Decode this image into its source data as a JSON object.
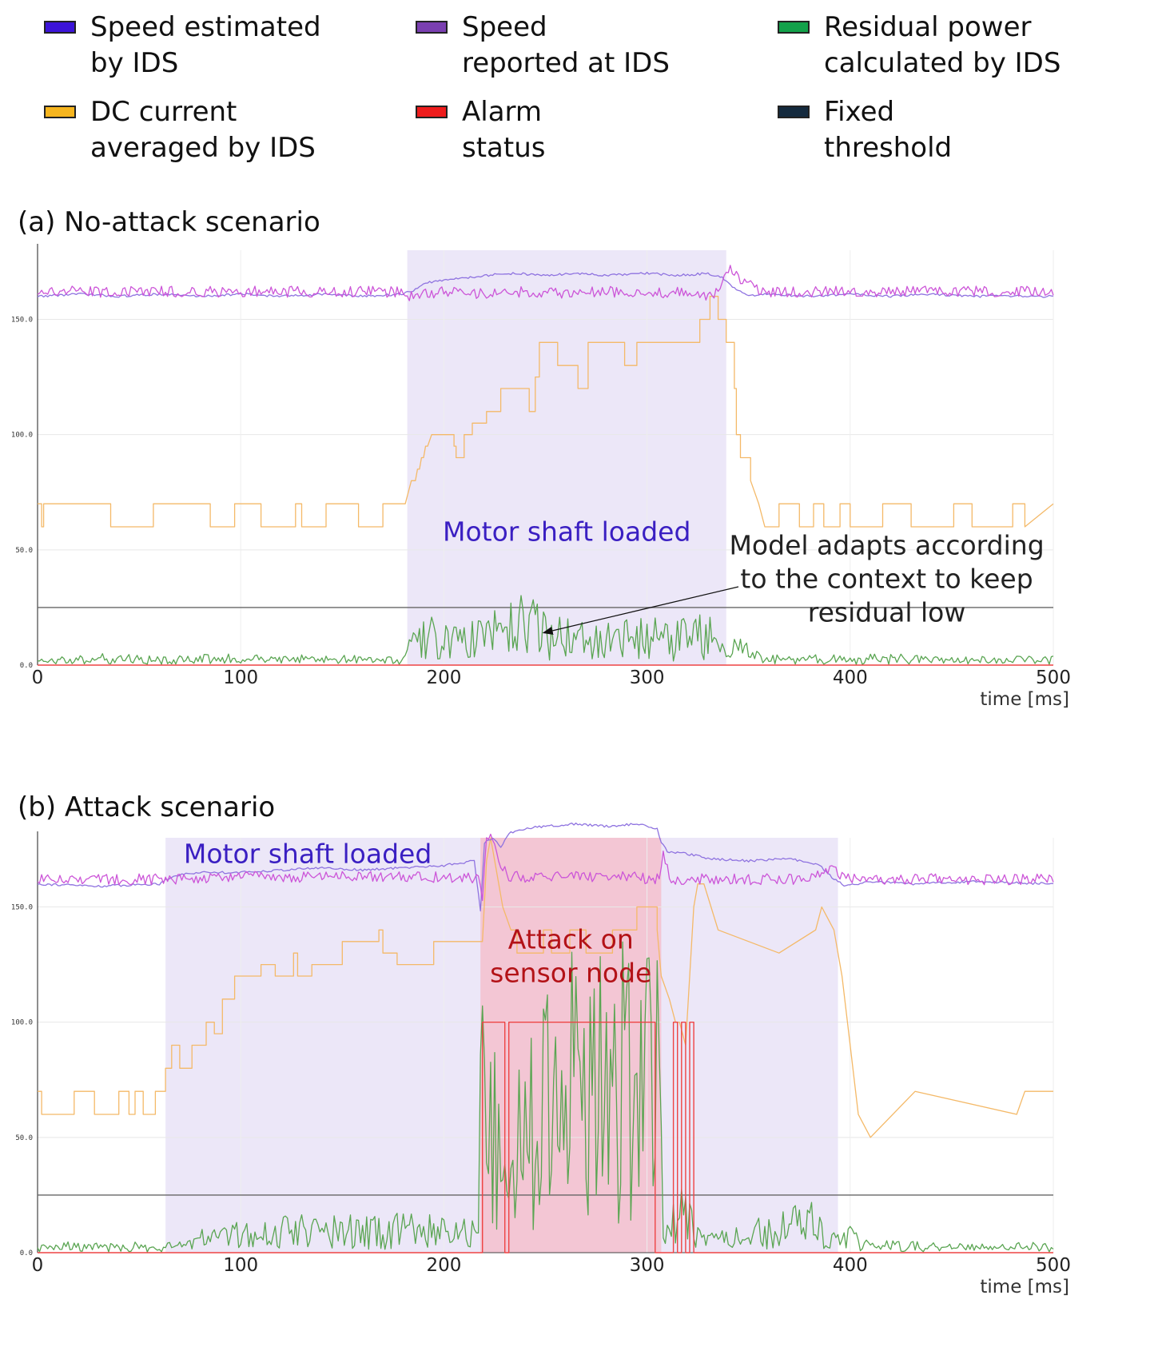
{
  "legend": [
    {
      "label": "Speed estimated\nby IDS",
      "color": "#3c14d8"
    },
    {
      "label": "Speed\nreported at IDS",
      "color": "#7a3fb0"
    },
    {
      "label": "Residual power\ncalculated by IDS",
      "color": "#12a14a"
    },
    {
      "label": "DC current\naveraged by IDS",
      "color": "#f6b51e"
    },
    {
      "label": "Alarm\nstatus",
      "color": "#ee1c1c"
    },
    {
      "label": "Fixed\nthreshold",
      "color": "#142a3e"
    }
  ],
  "colors": {
    "speed_estimated_line": "#8f73e0",
    "speed_reported_line": "#cc55d8",
    "residual_line": "#5aa552",
    "dc_current_line": "#f4b968",
    "alarm_line": "#ee4444",
    "threshold_line": "#666666",
    "loaded_band": "#ece7f8",
    "attack_band": "#f3c6d4"
  },
  "chart_data": [
    {
      "type": "line",
      "title": "(a) No-attack scenario",
      "xlabel": "time [ms]",
      "xlim": [
        0,
        500
      ],
      "ylim": [
        0,
        180
      ],
      "x_ticks": [
        "0",
        "100",
        "200",
        "300",
        "400",
        "500"
      ],
      "y_ticks": [
        "0.0",
        "50.0",
        "100.0",
        "150.0"
      ],
      "y_tick_values": [
        0,
        50,
        100,
        150
      ],
      "threshold": 25,
      "bands": [
        {
          "kind": "loaded",
          "x0": 182,
          "x1": 339,
          "label": "Motor shaft loaded"
        }
      ],
      "annotation": {
        "text": "Model adapts according\nto the context to keep\nresidual low",
        "arrow_to": [
          249,
          14
        ]
      },
      "series": [
        {
          "name": "Speed estimated by IDS",
          "key": "speed_est",
          "x": [
            0,
            20,
            40,
            60,
            80,
            100,
            120,
            140,
            160,
            180,
            186,
            192,
            200,
            210,
            220,
            235,
            250,
            265,
            280,
            300,
            315,
            330,
            337,
            342,
            350,
            360,
            380,
            400,
            420,
            440,
            460,
            480,
            500
          ],
          "y": [
            160,
            161,
            160,
            161,
            160,
            161,
            160,
            161,
            160,
            161,
            163,
            166,
            167,
            168,
            169,
            170,
            169,
            170,
            169,
            170,
            169,
            170,
            168,
            164,
            160,
            161,
            160,
            161,
            160,
            161,
            160,
            160,
            160
          ]
        },
        {
          "name": "Speed reported at IDS",
          "key": "speed_rep",
          "x": [
            0,
            180,
            182,
            200,
            220,
            240,
            260,
            280,
            300,
            320,
            333,
            340,
            345,
            352,
            360,
            380,
            400,
            420,
            440,
            460,
            480,
            500
          ],
          "y": [
            162,
            162,
            160,
            162,
            161,
            162,
            161,
            162,
            161,
            162,
            160,
            172,
            168,
            164,
            162,
            162,
            162,
            162,
            162,
            162,
            162,
            162
          ]
        },
        {
          "name": "DC current averaged by IDS",
          "key": "dc",
          "x": [
            0,
            2,
            2,
            3,
            3,
            36,
            36,
            57,
            57,
            85,
            85,
            97,
            97,
            110,
            110,
            127,
            127,
            130,
            130,
            142,
            142,
            158,
            158,
            170,
            170,
            181,
            184,
            186,
            187,
            188,
            189,
            190,
            191,
            192,
            194,
            195,
            205,
            205,
            206,
            206,
            210,
            210,
            214,
            214,
            221,
            221,
            228,
            228,
            230,
            230,
            242,
            242,
            245,
            245,
            247,
            247,
            256,
            256,
            263,
            263,
            266,
            266,
            271,
            271,
            289,
            289,
            295,
            295,
            311,
            311,
            326,
            326,
            331,
            331,
            335,
            335,
            339,
            339,
            343,
            343,
            344,
            344,
            346,
            346,
            351,
            351,
            355,
            358,
            365,
            365,
            375,
            375,
            382,
            382,
            387,
            387,
            395,
            395,
            400,
            400,
            416,
            416,
            430,
            430,
            451,
            451,
            460,
            460,
            480,
            480,
            486,
            486,
            500
          ],
          "y": [
            70,
            70,
            60,
            60,
            70,
            70,
            60,
            60,
            70,
            70,
            60,
            60,
            70,
            70,
            60,
            60,
            70,
            70,
            60,
            60,
            70,
            70,
            60,
            60,
            70,
            70,
            80,
            80,
            85,
            85,
            90,
            90,
            95,
            95,
            100,
            100,
            100,
            95,
            95,
            90,
            90,
            100,
            100,
            105,
            105,
            110,
            110,
            120,
            120,
            120,
            120,
            110,
            110,
            125,
            125,
            140,
            140,
            130,
            130,
            130,
            130,
            120,
            120,
            140,
            140,
            130,
            130,
            140,
            140,
            140,
            140,
            150,
            150,
            160,
            160,
            150,
            150,
            140,
            140,
            120,
            120,
            100,
            100,
            90,
            90,
            80,
            70,
            60,
            60,
            70,
            70,
            60,
            60,
            70,
            70,
            60,
            60,
            70,
            70,
            60,
            60,
            70,
            70,
            60,
            60,
            70,
            70,
            60,
            60,
            70,
            70,
            60,
            70
          ]
        },
        {
          "name": "Residual power calculated by IDS",
          "key": "resid",
          "x": [
            0,
            180,
            184,
            195,
            210,
            230,
            240,
            250,
            265,
            280,
            300,
            315,
            330,
            339,
            345,
            352,
            360,
            380,
            400,
            420,
            440,
            460,
            480,
            500
          ],
          "y": [
            2,
            2,
            8,
            12,
            10,
            14,
            18,
            13,
            11,
            10,
            12,
            11,
            12,
            10,
            7,
            4,
            2,
            2,
            2,
            2,
            2,
            2,
            2,
            2
          ]
        },
        {
          "name": "Alarm status",
          "key": "alarm",
          "x": [
            0,
            500
          ],
          "y": [
            0,
            0
          ]
        }
      ]
    },
    {
      "type": "line",
      "title": "(b) Attack scenario",
      "xlabel": "time [ms]",
      "xlim": [
        0,
        500
      ],
      "ylim": [
        0,
        180
      ],
      "x_ticks": [
        "0",
        "100",
        "200",
        "300",
        "400",
        "500"
      ],
      "y_ticks": [
        "0.0",
        "50.0",
        "100.0",
        "150.0"
      ],
      "y_tick_values": [
        0,
        50,
        100,
        150
      ],
      "threshold": 25,
      "bands": [
        {
          "kind": "loaded",
          "x0": 63,
          "x1": 394,
          "label": "Motor shaft loaded"
        },
        {
          "kind": "attack",
          "x0": 218,
          "x1": 307,
          "label": "Attack on\nsensor node"
        }
      ],
      "series": [
        {
          "name": "Speed estimated by IDS",
          "key": "speed_est",
          "x": [
            0,
            30,
            60,
            63,
            70,
            80,
            100,
            120,
            140,
            160,
            180,
            200,
            215,
            218,
            220,
            224,
            228,
            232,
            240,
            250,
            265,
            280,
            295,
            305,
            307,
            310,
            320,
            330,
            350,
            370,
            385,
            392,
            398,
            410,
            430,
            460,
            500
          ],
          "y": [
            160,
            159,
            160,
            162,
            164,
            165,
            165,
            166,
            167,
            166,
            167,
            168,
            170,
            148,
            178,
            180,
            176,
            182,
            184,
            185,
            186,
            185,
            186,
            184,
            178,
            174,
            173,
            171,
            170,
            171,
            168,
            162,
            159,
            161,
            160,
            161,
            160
          ]
        },
        {
          "name": "Speed reported at IDS",
          "key": "speed_rep",
          "x": [
            0,
            60,
            100,
            150,
            200,
            217,
            219,
            221,
            224,
            228,
            232,
            260,
            290,
            306,
            308,
            312,
            320,
            340,
            360,
            380,
            392,
            400,
            430,
            460,
            500
          ],
          "y": [
            162,
            162,
            163,
            163,
            163,
            162,
            155,
            178,
            180,
            168,
            163,
            163,
            163,
            162,
            172,
            160,
            162,
            162,
            162,
            162,
            166,
            162,
            162,
            162,
            162
          ]
        },
        {
          "name": "DC current averaged by IDS",
          "key": "dc",
          "x": [
            0,
            2,
            2,
            18,
            18,
            28,
            28,
            40,
            40,
            45,
            45,
            48,
            48,
            52,
            52,
            58,
            58,
            63,
            63,
            66,
            66,
            70,
            70,
            76,
            76,
            83,
            83,
            87,
            87,
            91,
            91,
            97,
            97,
            110,
            110,
            117,
            117,
            126,
            126,
            128,
            128,
            135,
            135,
            150,
            150,
            168,
            168,
            170,
            170,
            177,
            177,
            195,
            195,
            219,
            221,
            223,
            225,
            229,
            233,
            236,
            236,
            249,
            249,
            253,
            253,
            262,
            262,
            270,
            270,
            283,
            283,
            295,
            295,
            305,
            305,
            307,
            311,
            314,
            316,
            319,
            323,
            325,
            328,
            335,
            335,
            365,
            365,
            383,
            383,
            386,
            386,
            392,
            392,
            396,
            400,
            404,
            404,
            410,
            410,
            432,
            432,
            482,
            482,
            486,
            486,
            500
          ],
          "y": [
            70,
            70,
            60,
            60,
            70,
            70,
            60,
            60,
            70,
            70,
            60,
            60,
            70,
            70,
            60,
            60,
            70,
            70,
            80,
            80,
            90,
            90,
            80,
            80,
            90,
            90,
            100,
            100,
            95,
            95,
            110,
            110,
            120,
            120,
            125,
            125,
            120,
            120,
            130,
            130,
            120,
            120,
            125,
            125,
            135,
            135,
            140,
            140,
            130,
            130,
            125,
            125,
            135,
            135,
            170,
            180,
            170,
            150,
            140,
            140,
            130,
            130,
            140,
            140,
            130,
            130,
            140,
            140,
            130,
            130,
            140,
            140,
            150,
            150,
            140,
            120,
            110,
            100,
            100,
            90,
            150,
            160,
            160,
            140,
            140,
            130,
            130,
            140,
            140,
            150,
            150,
            140,
            140,
            120,
            90,
            60,
            60,
            50,
            50,
            70,
            70,
            60,
            60,
            70,
            70,
            70
          ]
        },
        {
          "name": "Residual power calculated by IDS",
          "key": "resid",
          "x": [
            0,
            60,
            80,
            100,
            150,
            200,
            217,
            219,
            222,
            226,
            232,
            240,
            260,
            280,
            300,
            306,
            308,
            315,
            320,
            326,
            340,
            360,
            380,
            390,
            398,
            410,
            440,
            470,
            500
          ],
          "y": [
            2,
            2,
            5,
            7,
            10,
            9,
            8,
            90,
            95,
            40,
            18,
            60,
            75,
            72,
            78,
            70,
            5,
            28,
            20,
            6,
            5,
            10,
            12,
            6,
            8,
            3,
            2,
            2,
            2
          ]
        },
        {
          "name": "Alarm status",
          "key": "alarm",
          "x": [
            0,
            218,
            219,
            219,
            230,
            230,
            232,
            232,
            304,
            304,
            313,
            313,
            315,
            315,
            317,
            317,
            319,
            319,
            321,
            321,
            323,
            323,
            500
          ],
          "y": [
            0,
            0,
            0,
            100,
            100,
            0,
            0,
            100,
            100,
            0,
            0,
            100,
            100,
            0,
            0,
            100,
            100,
            0,
            0,
            100,
            100,
            0,
            0
          ]
        }
      ]
    }
  ]
}
